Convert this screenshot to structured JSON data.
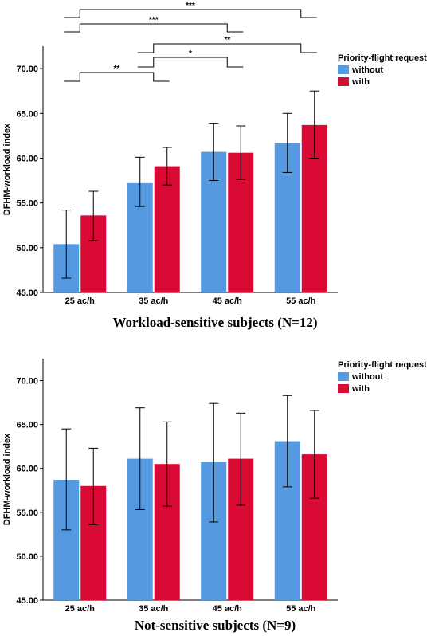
{
  "colors": {
    "without": "#5599e0",
    "with": "#d90a34",
    "axis": "#000000"
  },
  "chart_data": [
    {
      "type": "bar",
      "caption": "Workload-sensitive subjects (N=12)",
      "ylabel": "DFHM-workload index",
      "ylim": [
        45,
        72.5
      ],
      "yticks": [
        "45.00",
        "50.00",
        "55.00",
        "60.00",
        "65.00",
        "70.00"
      ],
      "categories": [
        "25 ac/h",
        "35 ac/h",
        "45 ac/h",
        "55 ac/h"
      ],
      "legend_title": "Priority-flight request",
      "legend_position": "top-right",
      "series": [
        {
          "name": "without",
          "values": [
            50.4,
            57.3,
            60.7,
            61.7
          ],
          "err_low": [
            46.6,
            54.6,
            57.5,
            58.4
          ],
          "err_high": [
            54.2,
            60.1,
            63.9,
            65.0
          ]
        },
        {
          "name": "with",
          "values": [
            53.6,
            59.1,
            60.6,
            63.7
          ],
          "err_low": [
            50.8,
            57.0,
            57.6,
            60.0
          ],
          "err_high": [
            56.3,
            61.2,
            63.6,
            67.5
          ]
        }
      ],
      "significance": [
        {
          "from": "25 ac/h",
          "to": "55 ac/h",
          "label": "***"
        },
        {
          "from": "25 ac/h",
          "to": "45 ac/h",
          "label": "***"
        },
        {
          "from": "35 ac/h",
          "to": "55 ac/h",
          "label": "**"
        },
        {
          "from": "35 ac/h",
          "to": "45 ac/h",
          "label": "*"
        },
        {
          "from": "25 ac/h",
          "to": "35 ac/h",
          "label": "**"
        }
      ]
    },
    {
      "type": "bar",
      "caption": "Not-sensitive subjects (N=9)",
      "ylabel": "DFHM-workload index",
      "ylim": [
        45,
        72.5
      ],
      "yticks": [
        "45.00",
        "50.00",
        "55.00",
        "60.00",
        "65.00",
        "70.00"
      ],
      "categories": [
        "25 ac/h",
        "35 ac/h",
        "45 ac/h",
        "55 ac/h"
      ],
      "legend_title": "Priority-flight request",
      "legend_position": "top-right",
      "series": [
        {
          "name": "without",
          "values": [
            58.7,
            61.1,
            60.7,
            63.1
          ],
          "err_low": [
            53.0,
            55.3,
            53.9,
            57.9
          ],
          "err_high": [
            64.5,
            66.9,
            67.4,
            68.3
          ]
        },
        {
          "name": "with",
          "values": [
            58.0,
            60.5,
            61.1,
            61.6
          ],
          "err_low": [
            53.6,
            55.7,
            55.8,
            56.6
          ],
          "err_high": [
            62.3,
            65.3,
            66.3,
            66.6
          ]
        }
      ],
      "significance": []
    }
  ]
}
